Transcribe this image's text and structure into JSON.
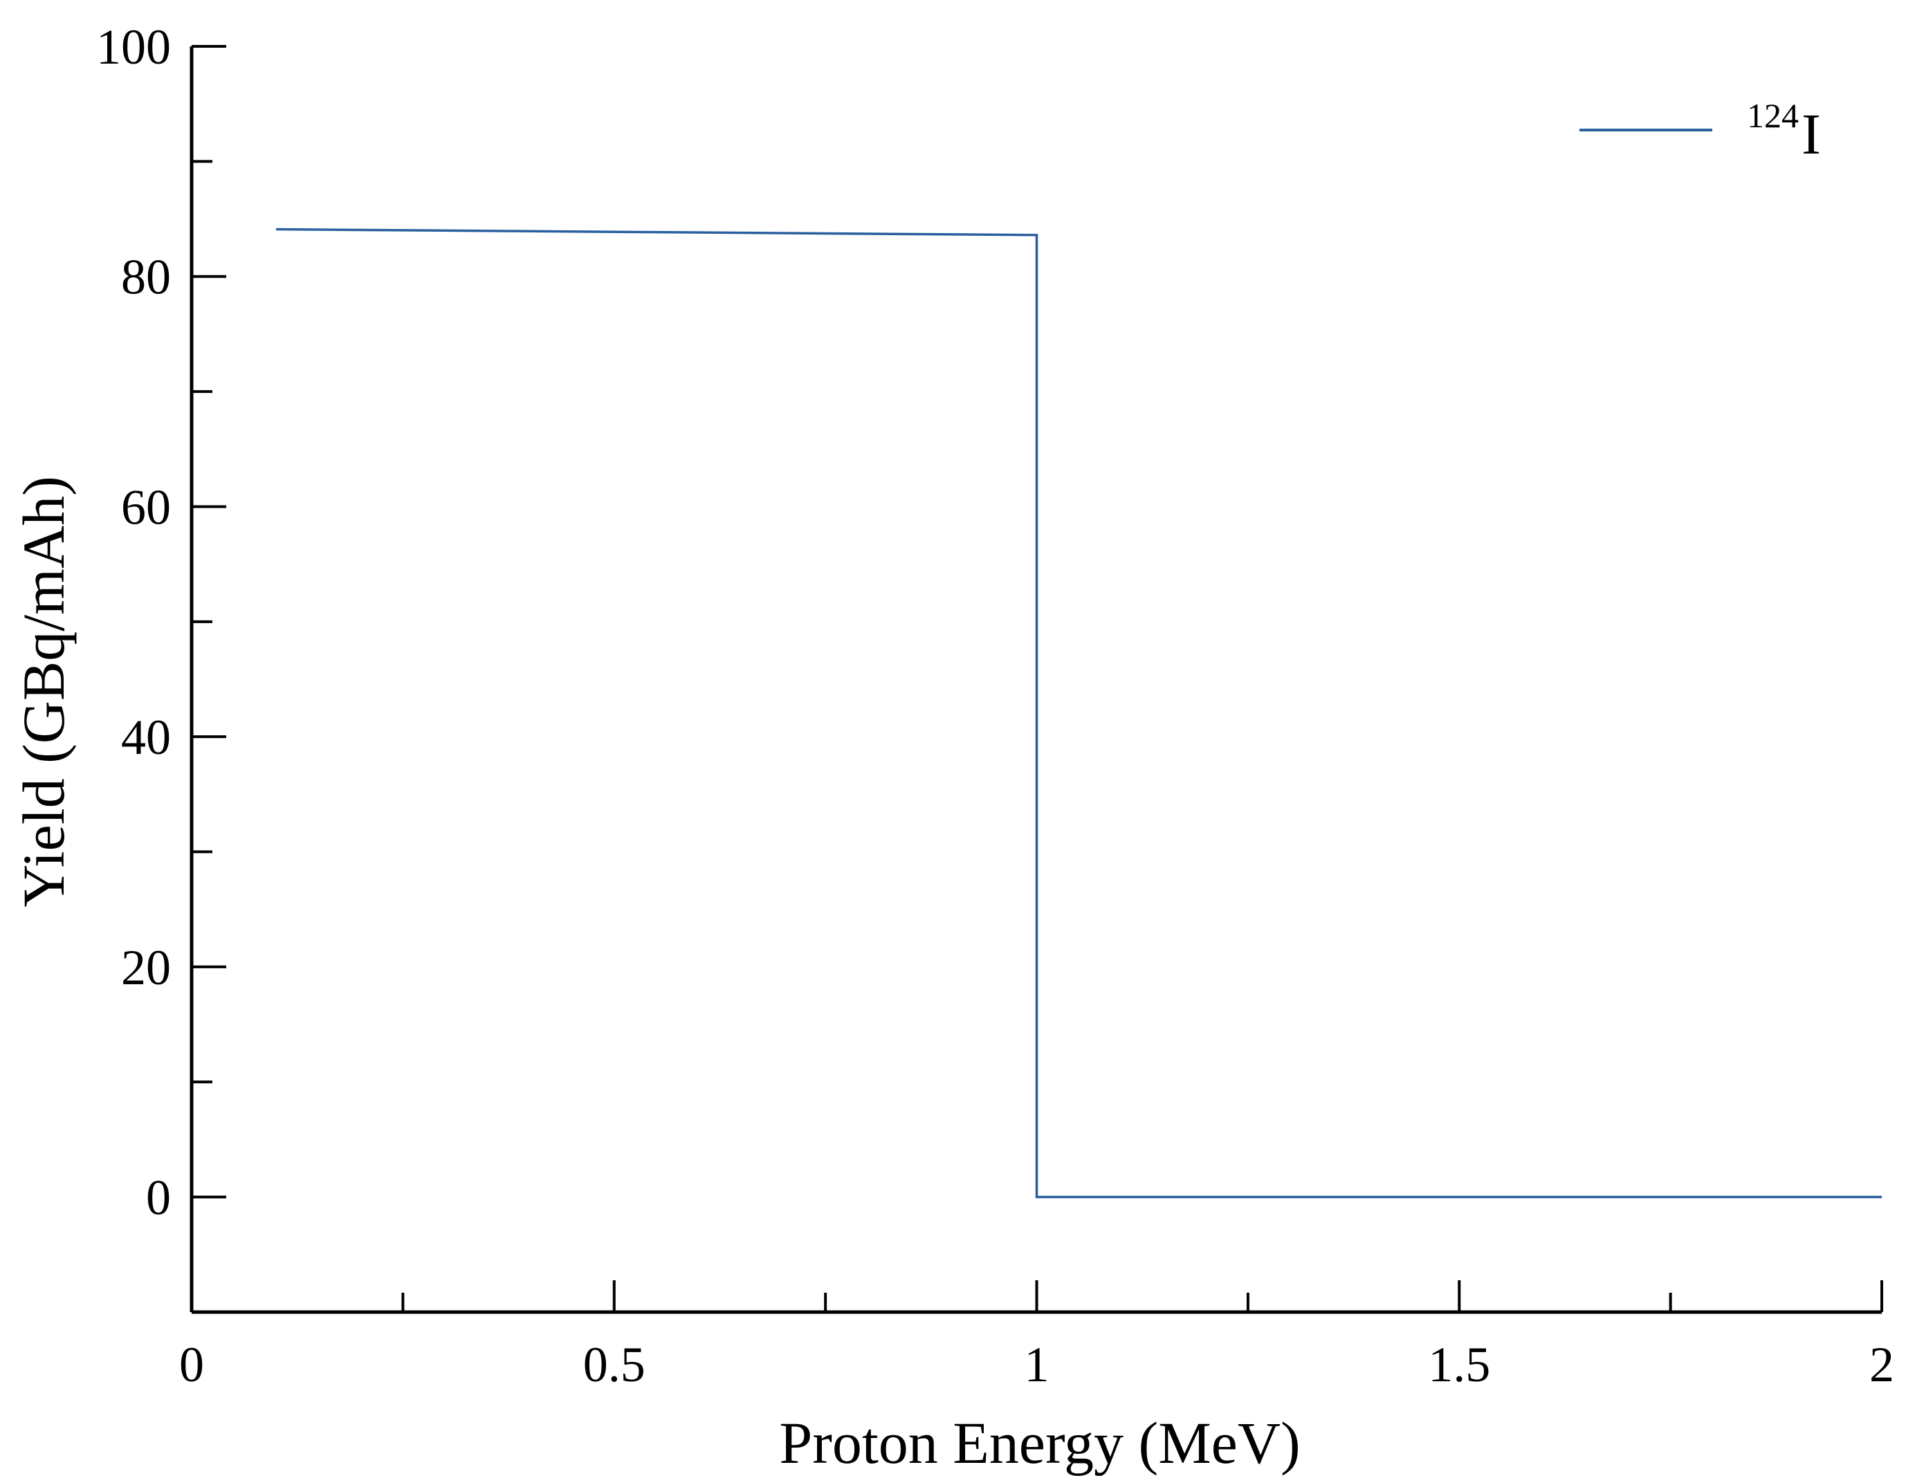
{
  "chart_data": {
    "type": "line",
    "xlabel": "Proton Energy (MeV)",
    "ylabel": "Yield (GBq/mAh)",
    "xlim": [
      0,
      2
    ],
    "ylim": [
      -10,
      100
    ],
    "x_ticks": [
      0,
      0.5,
      1,
      1.5,
      2
    ],
    "x_tick_labels": [
      "0",
      "0.5",
      "1",
      "1.5",
      "2"
    ],
    "x_minor_ticks": [
      0.25,
      0.75,
      1.25,
      1.75
    ],
    "y_ticks": [
      0,
      20,
      40,
      60,
      80,
      100
    ],
    "y_tick_labels": [
      "0",
      "20",
      "40",
      "60",
      "80",
      "100"
    ],
    "y_minor_ticks": [
      10,
      30,
      50,
      70,
      90
    ],
    "grid": false,
    "legend": "top-right",
    "series": [
      {
        "name_mass": "124",
        "name_symbol": "I",
        "color": "#2a5f9e",
        "x": [
          0.1,
          1.0,
          1.0,
          2.0
        ],
        "y": [
          84.1,
          83.6,
          0,
          0
        ]
      }
    ]
  }
}
